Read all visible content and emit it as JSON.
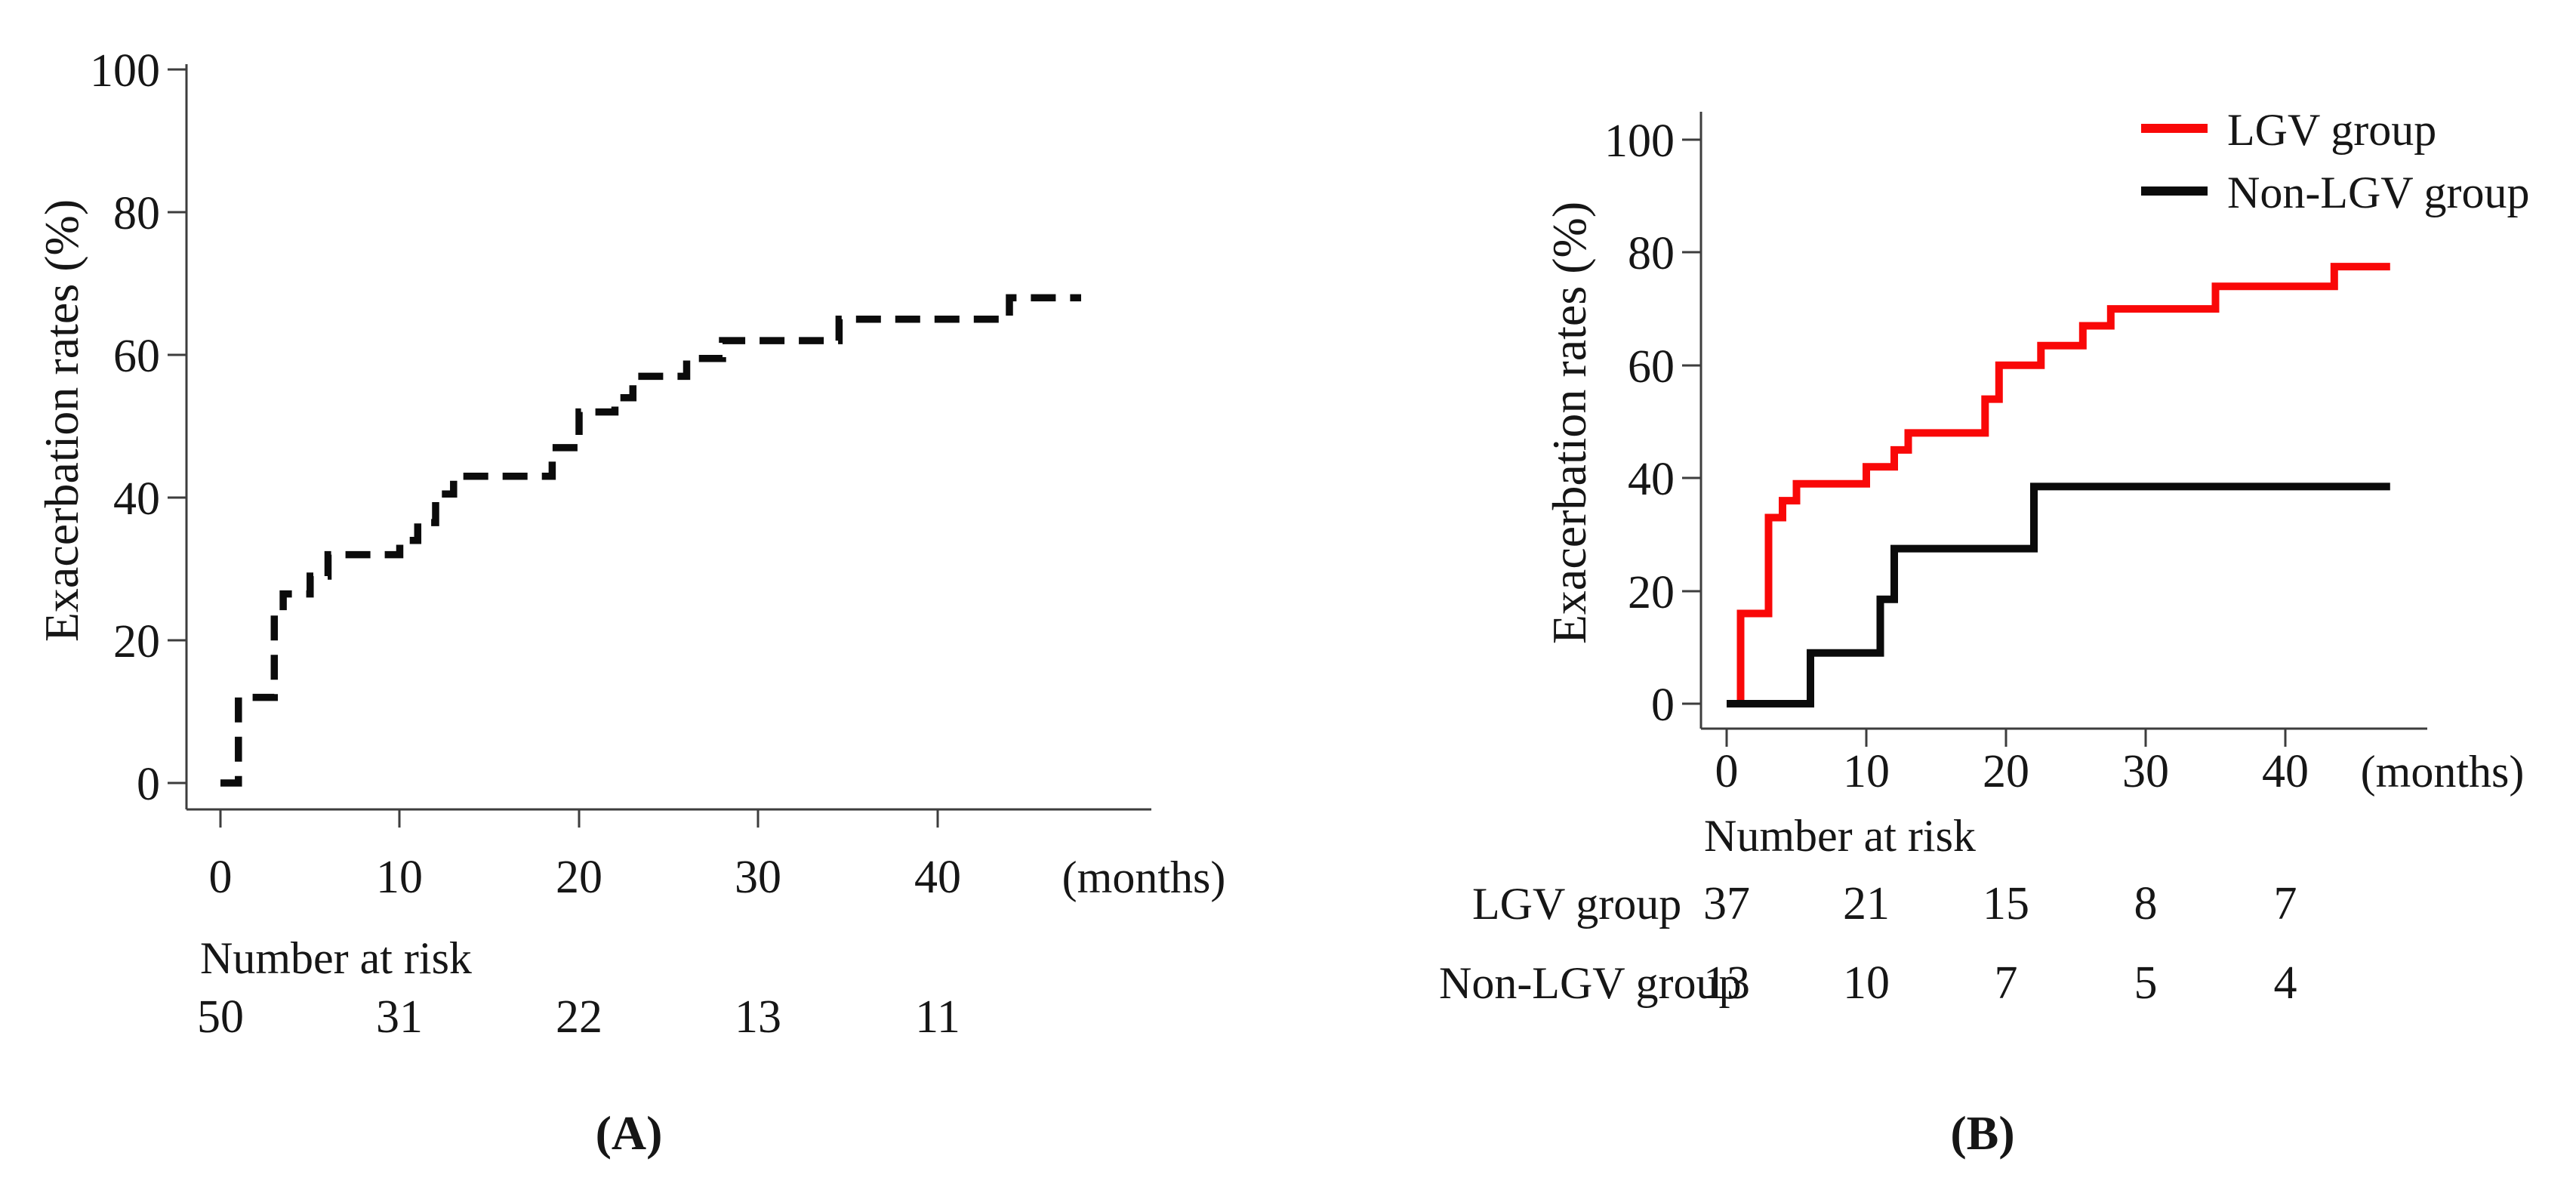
{
  "figure": {
    "background": "#ffffff"
  },
  "chart_data": [
    {
      "id": "A",
      "type": "line",
      "subtype": "kaplan_meier_step",
      "title": "",
      "xlabel": "(months)",
      "ylabel": "Exacerbation rates (%)",
      "xlim": [
        0,
        50
      ],
      "ylim": [
        0,
        100
      ],
      "x_ticks": [
        0,
        10,
        20,
        30,
        40
      ],
      "y_ticks": [
        0,
        20,
        40,
        60,
        80,
        100
      ],
      "grid": false,
      "legend_position": "none",
      "series": [
        {
          "name": "",
          "color": "#0b0b0b",
          "line_style": "dashed",
          "points": [
            [
              0,
              0
            ],
            [
              1,
              0
            ],
            [
              1,
              12
            ],
            [
              3,
              12
            ],
            [
              3,
              24
            ],
            [
              3.5,
              24
            ],
            [
              3.5,
              26.5
            ],
            [
              5,
              26.5
            ],
            [
              5,
              29
            ],
            [
              6,
              29
            ],
            [
              6,
              32
            ],
            [
              10,
              32
            ],
            [
              10,
              34
            ],
            [
              11,
              34
            ],
            [
              11,
              36.5
            ],
            [
              12,
              36.5
            ],
            [
              12,
              40.5
            ],
            [
              13,
              40.5
            ],
            [
              13,
              43
            ],
            [
              18.5,
              43
            ],
            [
              18.5,
              47
            ],
            [
              20,
              47
            ],
            [
              20,
              52
            ],
            [
              22,
              52
            ],
            [
              22,
              54
            ],
            [
              23,
              54
            ],
            [
              23,
              57
            ],
            [
              26,
              57
            ],
            [
              26,
              59.5
            ],
            [
              28,
              59.5
            ],
            [
              28,
              62
            ],
            [
              34.5,
              62
            ],
            [
              34.5,
              65
            ],
            [
              44,
              65
            ],
            [
              44,
              68
            ],
            [
              48,
              68
            ]
          ]
        }
      ],
      "number_at_risk": {
        "label": "Number at risk",
        "times": [
          0,
          10,
          20,
          30,
          40
        ],
        "rows": [
          {
            "name": "",
            "values": [
              50,
              31,
              22,
              13,
              11
            ]
          }
        ]
      },
      "caption": "(A)"
    },
    {
      "id": "B",
      "type": "line",
      "subtype": "kaplan_meier_step",
      "title": "",
      "xlabel": "(months)",
      "ylabel": "Exacerbation rates (%)",
      "xlim": [
        0,
        50
      ],
      "ylim": [
        0,
        100
      ],
      "x_ticks": [
        0,
        10,
        20,
        30,
        40
      ],
      "y_ticks": [
        0,
        20,
        40,
        60,
        80,
        100
      ],
      "grid": false,
      "legend_position": "top-right",
      "series": [
        {
          "name": "LGV group",
          "color": "#f90808",
          "line_style": "solid",
          "points": [
            [
              0,
              0
            ],
            [
              1,
              0
            ],
            [
              1,
              16
            ],
            [
              3,
              16
            ],
            [
              3,
              33
            ],
            [
              4,
              33
            ],
            [
              4,
              36
            ],
            [
              5,
              36
            ],
            [
              5,
              39
            ],
            [
              10,
              39
            ],
            [
              10,
              42
            ],
            [
              12,
              42
            ],
            [
              12,
              45
            ],
            [
              13,
              45
            ],
            [
              13,
              48
            ],
            [
              18.5,
              48
            ],
            [
              18.5,
              54
            ],
            [
              19.5,
              54
            ],
            [
              19.5,
              60
            ],
            [
              22.5,
              60
            ],
            [
              22.5,
              63.5
            ],
            [
              25.5,
              63.5
            ],
            [
              25.5,
              67
            ],
            [
              27.5,
              67
            ],
            [
              27.5,
              70
            ],
            [
              35,
              70
            ],
            [
              35,
              74
            ],
            [
              43.5,
              74
            ],
            [
              43.5,
              77.5
            ],
            [
              47.5,
              77.5
            ]
          ]
        },
        {
          "name": "Non-LGV group",
          "color": "#0b0b0b",
          "line_style": "solid",
          "points": [
            [
              0,
              0
            ],
            [
              6,
              0
            ],
            [
              6,
              9
            ],
            [
              11,
              9
            ],
            [
              11,
              18.5
            ],
            [
              12,
              18.5
            ],
            [
              12,
              27.5
            ],
            [
              22,
              27.5
            ],
            [
              22,
              38.5
            ],
            [
              47.5,
              38.5
            ]
          ]
        }
      ],
      "number_at_risk": {
        "label": "Number at risk",
        "times": [
          0,
          10,
          20,
          30,
          40
        ],
        "rows": [
          {
            "name": "LGV group",
            "values": [
              37,
              21,
              15,
              8,
              7
            ]
          },
          {
            "name": "Non-LGV group",
            "values": [
              13,
              10,
              7,
              5,
              4
            ]
          }
        ]
      },
      "caption": "(B)"
    }
  ]
}
